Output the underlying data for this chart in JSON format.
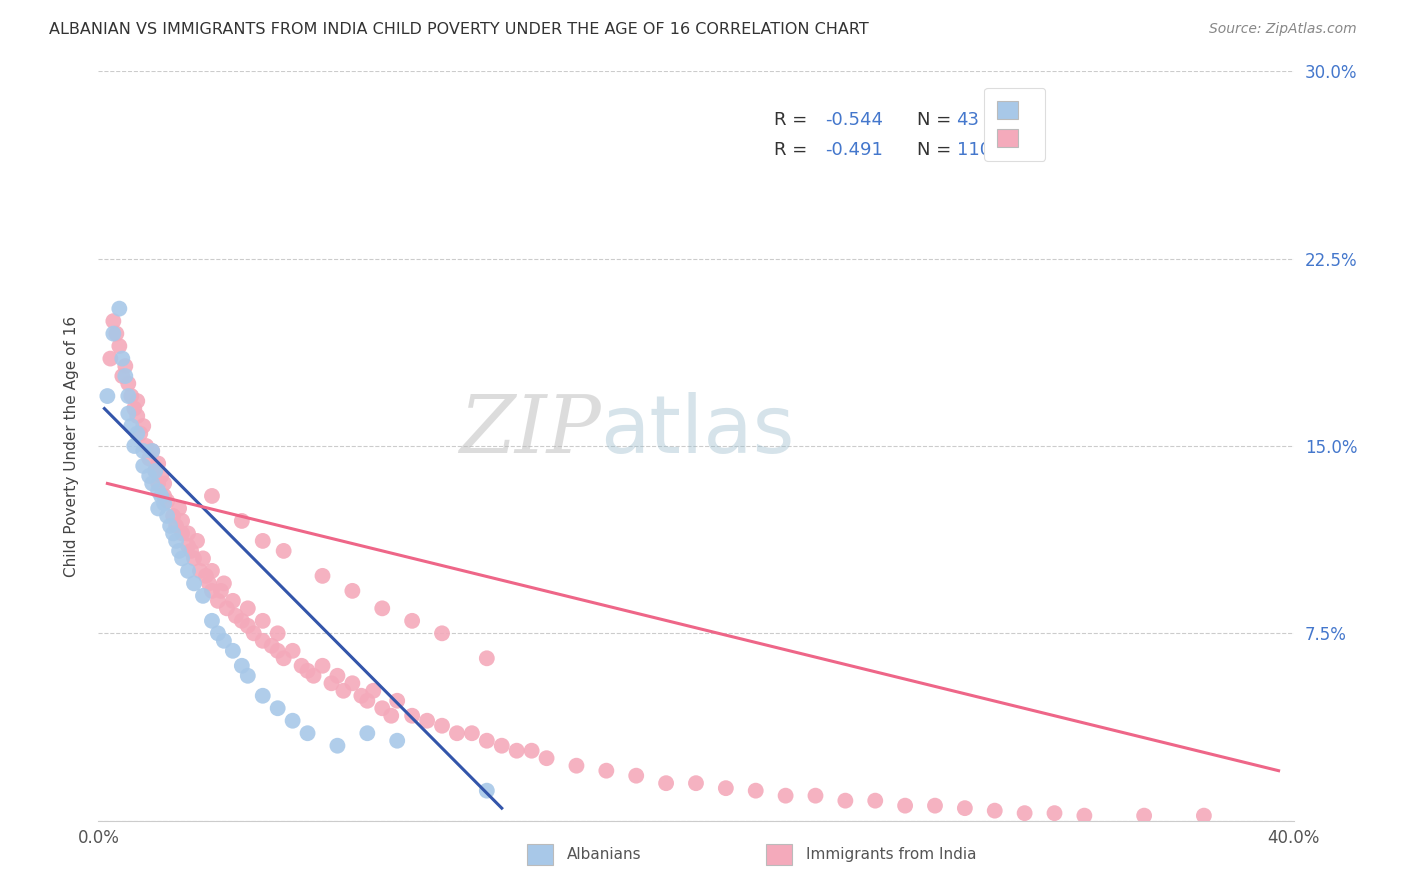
{
  "title": "ALBANIAN VS IMMIGRANTS FROM INDIA CHILD POVERTY UNDER THE AGE OF 16 CORRELATION CHART",
  "source": "Source: ZipAtlas.com",
  "ylabel": "Child Poverty Under the Age of 16",
  "xlim": [
    0.0,
    0.4
  ],
  "ylim": [
    0.0,
    0.3
  ],
  "legend_r1_val": "-0.544",
  "legend_n1_val": "43",
  "legend_r2_val": "-0.491",
  "legend_n2_val": "110",
  "blue_color": "#A8C8E8",
  "pink_color": "#F4AABB",
  "blue_line_color": "#3355AA",
  "pink_line_color": "#EE6688",
  "text_blue": "#4477CC",
  "watermark_zip": "ZIP",
  "watermark_atlas": "atlas",
  "legend_label1": "Albanians",
  "legend_label2": "Immigrants from India",
  "albanians_x": [
    0.003,
    0.005,
    0.007,
    0.008,
    0.009,
    0.01,
    0.01,
    0.011,
    0.012,
    0.013,
    0.015,
    0.015,
    0.017,
    0.018,
    0.018,
    0.019,
    0.02,
    0.02,
    0.021,
    0.022,
    0.023,
    0.024,
    0.025,
    0.026,
    0.027,
    0.028,
    0.03,
    0.032,
    0.035,
    0.038,
    0.04,
    0.042,
    0.045,
    0.048,
    0.05,
    0.055,
    0.06,
    0.065,
    0.07,
    0.08,
    0.09,
    0.1,
    0.13
  ],
  "albanians_y": [
    0.17,
    0.195,
    0.205,
    0.185,
    0.178,
    0.17,
    0.163,
    0.158,
    0.15,
    0.155,
    0.148,
    0.142,
    0.138,
    0.148,
    0.135,
    0.14,
    0.132,
    0.125,
    0.13,
    0.127,
    0.122,
    0.118,
    0.115,
    0.112,
    0.108,
    0.105,
    0.1,
    0.095,
    0.09,
    0.08,
    0.075,
    0.072,
    0.068,
    0.062,
    0.058,
    0.05,
    0.045,
    0.04,
    0.035,
    0.03,
    0.035,
    0.032,
    0.012
  ],
  "india_x": [
    0.004,
    0.005,
    0.006,
    0.007,
    0.008,
    0.009,
    0.01,
    0.011,
    0.012,
    0.013,
    0.013,
    0.014,
    0.015,
    0.016,
    0.017,
    0.018,
    0.019,
    0.02,
    0.02,
    0.021,
    0.022,
    0.022,
    0.023,
    0.025,
    0.026,
    0.027,
    0.028,
    0.028,
    0.03,
    0.03,
    0.031,
    0.032,
    0.033,
    0.034,
    0.035,
    0.036,
    0.037,
    0.038,
    0.038,
    0.04,
    0.041,
    0.042,
    0.043,
    0.045,
    0.046,
    0.048,
    0.05,
    0.05,
    0.052,
    0.055,
    0.055,
    0.058,
    0.06,
    0.06,
    0.062,
    0.065,
    0.068,
    0.07,
    0.072,
    0.075,
    0.078,
    0.08,
    0.082,
    0.085,
    0.088,
    0.09,
    0.092,
    0.095,
    0.098,
    0.1,
    0.105,
    0.11,
    0.115,
    0.12,
    0.125,
    0.13,
    0.135,
    0.14,
    0.145,
    0.15,
    0.16,
    0.17,
    0.18,
    0.19,
    0.2,
    0.21,
    0.22,
    0.23,
    0.24,
    0.25,
    0.26,
    0.27,
    0.28,
    0.29,
    0.3,
    0.31,
    0.32,
    0.33,
    0.35,
    0.37,
    0.038,
    0.048,
    0.055,
    0.062,
    0.075,
    0.085,
    0.095,
    0.105,
    0.115,
    0.13
  ],
  "india_y": [
    0.185,
    0.2,
    0.195,
    0.19,
    0.178,
    0.182,
    0.175,
    0.17,
    0.165,
    0.162,
    0.168,
    0.155,
    0.158,
    0.15,
    0.145,
    0.148,
    0.14,
    0.135,
    0.143,
    0.138,
    0.13,
    0.135,
    0.128,
    0.122,
    0.118,
    0.125,
    0.115,
    0.12,
    0.11,
    0.115,
    0.108,
    0.105,
    0.112,
    0.1,
    0.105,
    0.098,
    0.095,
    0.092,
    0.1,
    0.088,
    0.092,
    0.095,
    0.085,
    0.088,
    0.082,
    0.08,
    0.085,
    0.078,
    0.075,
    0.08,
    0.072,
    0.07,
    0.075,
    0.068,
    0.065,
    0.068,
    0.062,
    0.06,
    0.058,
    0.062,
    0.055,
    0.058,
    0.052,
    0.055,
    0.05,
    0.048,
    0.052,
    0.045,
    0.042,
    0.048,
    0.042,
    0.04,
    0.038,
    0.035,
    0.035,
    0.032,
    0.03,
    0.028,
    0.028,
    0.025,
    0.022,
    0.02,
    0.018,
    0.015,
    0.015,
    0.013,
    0.012,
    0.01,
    0.01,
    0.008,
    0.008,
    0.006,
    0.006,
    0.005,
    0.004,
    0.003,
    0.003,
    0.002,
    0.002,
    0.002,
    0.13,
    0.12,
    0.112,
    0.108,
    0.098,
    0.092,
    0.085,
    0.08,
    0.075,
    0.065
  ],
  "blue_line_x": [
    0.002,
    0.135
  ],
  "blue_line_y": [
    0.165,
    0.005
  ],
  "pink_line_x": [
    0.003,
    0.395
  ],
  "pink_line_y": [
    0.135,
    0.02
  ]
}
